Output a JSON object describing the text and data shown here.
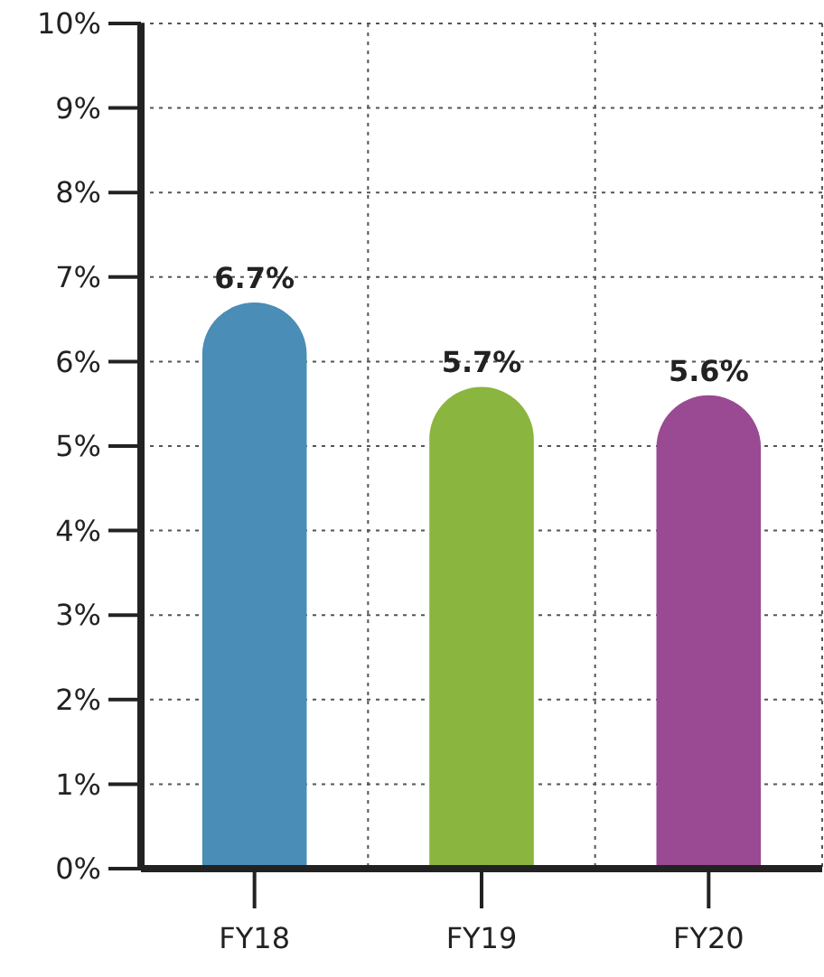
{
  "chart_data": {
    "type": "bar",
    "categories": [
      "FY18",
      "FY19",
      "FY20"
    ],
    "values": [
      6.7,
      5.7,
      5.6
    ],
    "colors": [
      "#4a8db6",
      "#8ab53e",
      "#9a4a92"
    ],
    "ylim": [
      0,
      10
    ],
    "yticks": [
      {
        "value": 0,
        "label": "0%"
      },
      {
        "value": 1,
        "label": "1%"
      },
      {
        "value": 2,
        "label": "2%"
      },
      {
        "value": 3,
        "label": "3%"
      },
      {
        "value": 4,
        "label": "4%"
      },
      {
        "value": 5,
        "label": "5%"
      },
      {
        "value": 6,
        "label": "6%"
      },
      {
        "value": 7,
        "label": "7%"
      },
      {
        "value": 8,
        "label": "8%"
      },
      {
        "value": 9,
        "label": "9%"
      },
      {
        "value": 10,
        "label": "10%"
      }
    ],
    "value_labels": [
      "6.7%",
      "5.7%",
      "5.6%"
    ],
    "grid": true
  }
}
